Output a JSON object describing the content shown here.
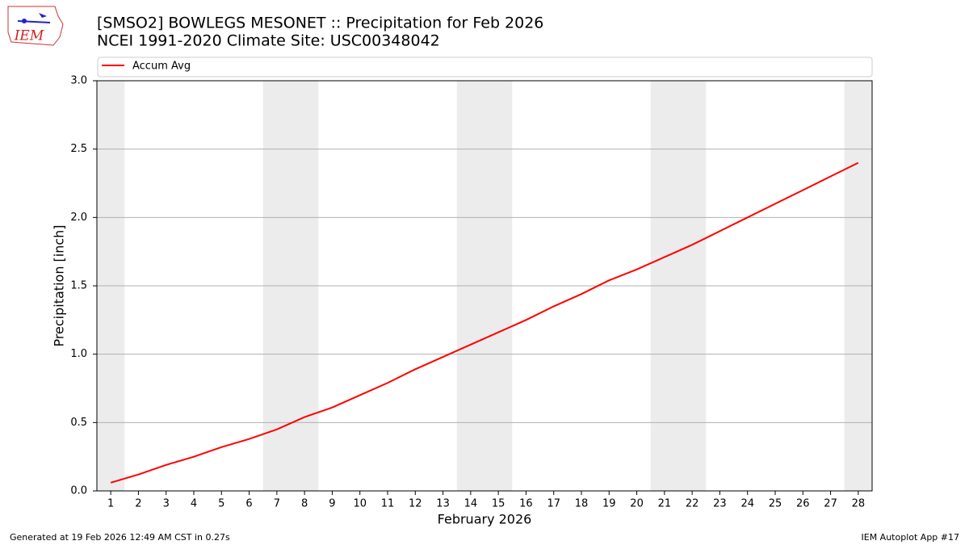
{
  "chart_data": {
    "type": "line",
    "logo_text": "IEM",
    "title": "[SMSO2] BOWLEGS MESONET :: Precipitation for Feb 2026",
    "subtitle": "NCEI 1991-2020 Climate Site: USC00348042",
    "xlabel": "February 2026",
    "ylabel": "Precipitation [inch]",
    "x": [
      1,
      2,
      3,
      4,
      5,
      6,
      7,
      8,
      9,
      10,
      11,
      12,
      13,
      14,
      15,
      16,
      17,
      18,
      19,
      20,
      21,
      22,
      23,
      24,
      25,
      26,
      27,
      28
    ],
    "series": [
      {
        "name": "Accum Avg",
        "color": "#ff0000",
        "values": [
          0.06,
          0.12,
          0.19,
          0.25,
          0.32,
          0.38,
          0.45,
          0.54,
          0.61,
          0.7,
          0.79,
          0.89,
          0.98,
          1.07,
          1.16,
          1.25,
          1.35,
          1.44,
          1.54,
          1.62,
          1.71,
          1.8,
          1.9,
          2.0,
          2.1,
          2.2,
          2.3,
          2.4
        ]
      }
    ],
    "weekend_days": [
      1,
      7,
      8,
      14,
      15,
      21,
      22,
      28
    ],
    "xlim": [
      0.5,
      28.5
    ],
    "xticks": [
      1,
      2,
      3,
      4,
      5,
      6,
      7,
      8,
      9,
      10,
      11,
      12,
      13,
      14,
      15,
      16,
      17,
      18,
      19,
      20,
      21,
      22,
      23,
      24,
      25,
      26,
      27,
      28
    ],
    "ylim": [
      0,
      3
    ],
    "yticks": [
      {
        "value": 0,
        "label": "0.0"
      },
      0.5,
      {
        "value": 1,
        "label": "1.0"
      },
      1.5,
      {
        "value": 2,
        "label": "2.0"
      },
      2.5,
      {
        "value": 3,
        "label": "3.0"
      }
    ],
    "grid": true,
    "legend": "top",
    "footer_left": "Generated at 19 Feb 2026 12:49 AM CST in 0.27s",
    "footer_right": "IEM Autoplot App #17"
  }
}
